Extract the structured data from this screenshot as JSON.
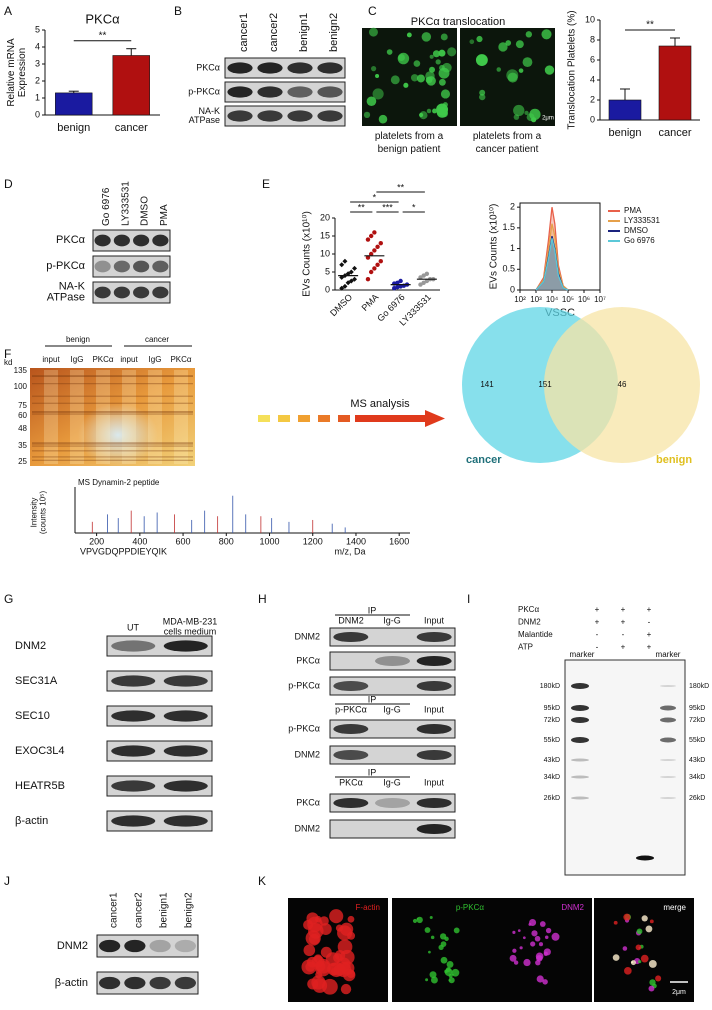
{
  "chart_data": [
    {
      "type": "bar",
      "title": "PKCα",
      "ylabel": [
        "Relative mRNA",
        "Expression"
      ],
      "categories": [
        "benign",
        "cancer"
      ],
      "values": [
        1.3,
        3.5
      ],
      "errors": [
        0.1,
        0.4
      ],
      "colors": [
        "#1a1aa0",
        "#b01010"
      ],
      "ylim": [
        0,
        5
      ],
      "yticks": [
        0,
        1,
        2,
        3,
        4,
        5
      ],
      "annotations": [
        "**"
      ]
    },
    {
      "type": "bar",
      "ylabel": [
        "Translocation Platelets (%)"
      ],
      "categories": [
        "benign",
        "cancer"
      ],
      "values": [
        2,
        7.4
      ],
      "errors": [
        1.1,
        0.8
      ],
      "colors": [
        "#1a1aa0",
        "#b01010"
      ],
      "ylim": [
        0,
        10
      ],
      "yticks": [
        0,
        2,
        4,
        6,
        8,
        10
      ],
      "annotations": [
        "**"
      ]
    },
    {
      "type": "strip",
      "ylabel": [
        "EVs Counts (x10¹⁰)"
      ],
      "categories": [
        "DMSO",
        "PMA",
        "Go 6976",
        "LY333531"
      ],
      "colors": [
        "#111111",
        "#b01010",
        "#1a1aa0",
        "#999999"
      ],
      "values": [
        [
          0.5,
          1,
          2,
          2.5,
          3,
          3.5,
          4,
          4.5,
          5,
          6,
          7,
          8
        ],
        [
          3,
          5,
          6,
          7,
          8,
          9,
          10,
          11,
          12,
          13,
          14,
          15,
          16
        ],
        [
          0.5,
          0.8,
          1,
          1.2,
          1.5,
          1.8,
          2,
          2.5
        ],
        [
          1.5,
          2,
          2.5,
          3,
          3,
          3.5,
          4,
          4.5
        ]
      ],
      "means": [
        4,
        9.5,
        1.5,
        3
      ],
      "ylim": [
        0,
        20
      ],
      "yticks": [
        0,
        5,
        10,
        15,
        20
      ],
      "annotations": [
        "**",
        "*",
        "**",
        "***",
        "*"
      ]
    },
    {
      "type": "line",
      "ylabel": [
        "EVs Counts (x10¹⁰)"
      ],
      "xlabel": "VSSC",
      "log_x": true,
      "x": [
        1000,
        3000,
        6000,
        10000,
        15000,
        25000,
        50000,
        100000
      ],
      "series": [
        {
          "name": "PMA",
          "color": "#e8604a",
          "values": [
            0,
            0.3,
            1.2,
            2.0,
            1.6,
            0.6,
            0.1,
            0
          ]
        },
        {
          "name": "LY333531",
          "color": "#e6a04a",
          "values": [
            0,
            0.25,
            1.0,
            1.6,
            1.3,
            0.5,
            0.1,
            0
          ]
        },
        {
          "name": "DMSO",
          "color": "#1a237e",
          "values": [
            0,
            0.2,
            0.8,
            1.3,
            1.0,
            0.4,
            0.05,
            0
          ]
        },
        {
          "name": "Go 6976",
          "color": "#5bc8d8",
          "values": [
            0,
            0.2,
            0.75,
            1.25,
            0.95,
            0.35,
            0.05,
            0
          ]
        }
      ],
      "xlim": [
        100,
        10000000
      ],
      "xticks": [
        {
          "value": 100,
          "label": "10²"
        },
        {
          "value": 1000,
          "label": "10³"
        },
        {
          "value": 10000,
          "label": "10⁴"
        },
        {
          "value": 100000,
          "label": "10⁵"
        },
        {
          "value": 1000000,
          "label": "10⁶"
        },
        {
          "value": 10000000,
          "label": "10⁷"
        }
      ],
      "ylim": [
        0,
        2.1
      ],
      "yticks": [
        0,
        0.5,
        1,
        1.5,
        2
      ]
    },
    {
      "type": "spectrum",
      "title": "MS Dynamin-2 peptide",
      "ylabel": [
        "Intensity",
        "(counts 10⁵)"
      ],
      "xlabel": "m/z, Da",
      "annotation": "VPVGDQPPDIEYQIK",
      "x": [
        180,
        250,
        300,
        360,
        420,
        480,
        560,
        640,
        700,
        760,
        830,
        890,
        960,
        1010,
        1090,
        1200,
        1290,
        1350
      ],
      "values": [
        0.3,
        0.5,
        0.4,
        0.6,
        0.45,
        0.55,
        0.5,
        0.35,
        0.6,
        0.45,
        1,
        0.5,
        0.45,
        0.4,
        0.3,
        0.35,
        0.25,
        0.15
      ],
      "color": "#3355aa",
      "xlim": [
        100,
        1650
      ],
      "xticks": [
        200,
        400,
        600,
        800,
        1000,
        1200,
        1400,
        1600
      ],
      "ylim": [
        0,
        1.1
      ]
    }
  ],
  "panels": {
    "letters": [
      "A",
      "B",
      "C",
      "D",
      "E",
      "F",
      "G",
      "H",
      "I",
      "J",
      "K"
    ],
    "B": {
      "lanes": [
        "cancer1",
        "cancer2",
        "benign1",
        "benign2"
      ],
      "rows": [
        "PKCα",
        "p-PKCα",
        [
          "NA-K",
          "ATPase"
        ]
      ]
    },
    "C": {
      "title": "PKCα   translocation",
      "captions": [
        [
          "platelets from a",
          "benign patient"
        ],
        [
          "platelets from a",
          "cancer patient"
        ]
      ],
      "scale": "2μm"
    },
    "D": {
      "lanes": [
        "Go 6976",
        "LY333531",
        "DMSO",
        "PMA"
      ],
      "rows": [
        "PKCα",
        "p-PKCα",
        [
          "NA-K",
          "ATPase"
        ]
      ]
    },
    "F": {
      "groups": [
        "benign",
        "cancer"
      ],
      "lanes": [
        "input",
        "IgG",
        "PKCα",
        "input",
        "IgG",
        "PKCα"
      ],
      "kd_label": "kd",
      "kd": [
        135,
        100,
        75,
        60,
        48,
        35,
        25
      ],
      "arrow_text": "MS analysis",
      "venn": {
        "left_label": "cancer",
        "right_label": "benign",
        "left_only": 141,
        "both": 151,
        "right_only": 46
      }
    },
    "G": {
      "lanes": [
        "UT",
        [
          "MDA-MB-231",
          "cells medium"
        ]
      ],
      "rows": [
        "DNM2",
        "SEC31A",
        "SEC10",
        "EXOC3L4",
        "HEATR5B",
        "β-actin"
      ]
    },
    "H": {
      "blocks": [
        {
          "ip": "IP",
          "lanes": [
            "DNM2",
            "Ig-G",
            "Input"
          ],
          "rows": [
            "DNM2",
            "PKCα",
            "p-PKCα"
          ]
        },
        {
          "ip": "IP",
          "lanes": [
            "p-PKCα",
            "Ig-G",
            "Input"
          ],
          "rows": [
            "p-PKCα",
            "DNM2"
          ]
        },
        {
          "ip": "IP",
          "lanes": [
            "PKCα",
            "Ig-G",
            "Input"
          ],
          "rows": [
            "PKCα",
            "DNM2"
          ]
        }
      ]
    },
    "I": {
      "conditions": [
        {
          "label": "PKCα",
          "signs": [
            "+",
            "+",
            "+"
          ]
        },
        {
          "label": "DNM2",
          "signs": [
            "+",
            "+",
            "-"
          ]
        },
        {
          "label": "Malantide",
          "signs": [
            "-",
            "-",
            "+"
          ]
        },
        {
          "label": "ATP",
          "signs": [
            "-",
            "+",
            "+"
          ]
        }
      ],
      "markers": [
        "marker",
        "marker"
      ],
      "kd_left": [
        "180kD",
        "95kD",
        "72kD",
        "55kD",
        "43kD",
        "34kD",
        "26kD"
      ],
      "kd_right": [
        "180kD",
        "95kD",
        "72kD",
        "55kD",
        "43kD",
        "34kD",
        "26kD"
      ]
    },
    "J": {
      "lanes": [
        "cancer1",
        "cancer2",
        "benign1",
        "benign2"
      ],
      "rows": [
        "DNM2",
        "β-actin"
      ]
    },
    "K": {
      "channels": [
        "F-actin",
        "p-PKCα",
        "DNM2",
        "merge"
      ],
      "scale": "2μm"
    }
  }
}
